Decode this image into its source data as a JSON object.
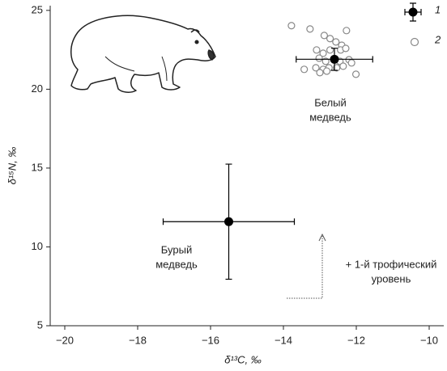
{
  "chart_data": {
    "type": "scatter",
    "x_label": "δ¹³C, ‰",
    "y_label": "δ¹⁵N, ‰",
    "xlim": [
      -20.4,
      -9.6
    ],
    "ylim": [
      5,
      25.3
    ],
    "xticks": [
      {
        "value": -20,
        "label": "−20"
      },
      {
        "value": -18,
        "label": "−18"
      },
      {
        "value": -16,
        "label": "−16"
      },
      {
        "value": -14,
        "label": "−14"
      },
      {
        "value": -12,
        "label": "−12"
      },
      {
        "value": -10,
        "label": "−10"
      }
    ],
    "yticks": [
      5,
      10,
      15,
      20,
      25
    ],
    "series": [
      {
        "name": "1",
        "color": "#000000",
        "x": [
          -15.5,
          -12.6
        ],
        "values": [
          11.6,
          21.9
        ],
        "xerr": [
          1.8,
          1.05
        ],
        "yerr": [
          3.65,
          0.7
        ]
      },
      {
        "name": "2",
        "color": "#888888",
        "x": [
          -13.78,
          -13.27,
          -12.88,
          -12.27,
          -12.72,
          -12.56,
          -12.4,
          -13.09,
          -12.91,
          -12.72,
          -12.43,
          -12.29,
          -13.02,
          -12.84,
          -12.45,
          -12.2,
          -13.43,
          -13.11,
          -12.91,
          -12.75,
          -12.54,
          -12.36,
          -12.13,
          -13.0,
          -12.81,
          -12.01
        ],
        "values": [
          24.03,
          23.82,
          23.41,
          23.72,
          23.21,
          23.0,
          22.79,
          22.49,
          22.28,
          22.49,
          22.49,
          22.59,
          21.97,
          21.77,
          21.77,
          21.87,
          21.26,
          21.36,
          21.26,
          21.36,
          21.36,
          21.46,
          21.67,
          21.05,
          21.15,
          20.95
        ]
      }
    ],
    "annotations": [
      {
        "lines": [
          "Белый",
          "медведь"
        ]
      },
      {
        "lines": [
          "Бурый",
          "медведь"
        ]
      },
      {
        "lines": [
          "+ 1-й трофический",
          "уровень"
        ]
      }
    ]
  }
}
